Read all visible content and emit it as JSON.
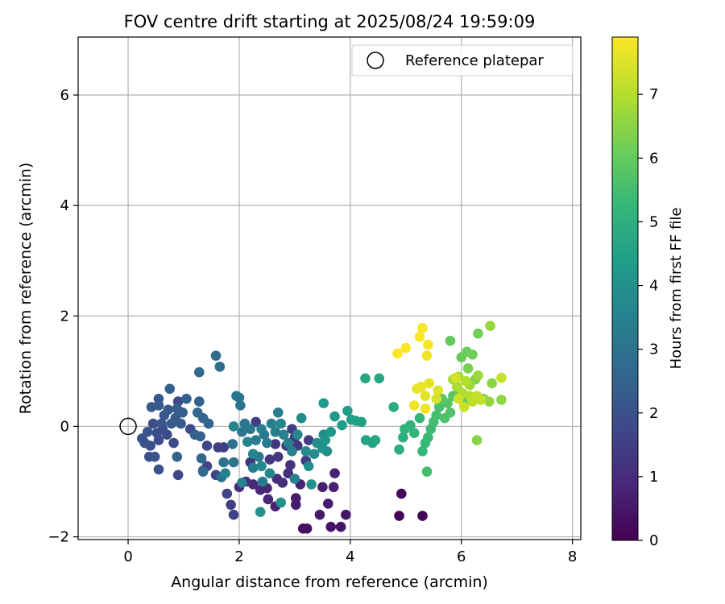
{
  "chart_data": {
    "type": "scatter",
    "title": "FOV centre drift starting at 2025/08/24 19:59:09",
    "xlabel": "Angular distance from reference (arcmin)",
    "ylabel": "Rotation from reference (arcmin)",
    "xlim": [
      -0.9,
      8.15
    ],
    "ylim": [
      -2.05,
      7.05
    ],
    "xticks": [
      0,
      2,
      4,
      6,
      8
    ],
    "yticks": [
      -2,
      0,
      2,
      4,
      6
    ],
    "grid": true,
    "legend": {
      "placement": "top-right",
      "entries": [
        "Reference platepar"
      ]
    },
    "reference_point": {
      "x": 0,
      "y": 0
    },
    "colorbar": {
      "label": "Hours from first FF file",
      "colormap": "viridis",
      "range": [
        0,
        7.9
      ],
      "ticks": [
        0,
        1,
        2,
        3,
        4,
        5,
        6,
        7
      ]
    },
    "colormap_stops": [
      "#440154",
      "#482878",
      "#3e4989",
      "#31688e",
      "#26828e",
      "#1f9e89",
      "#35b779",
      "#6ece58",
      "#b5de2b",
      "#fde725"
    ],
    "points": [
      {
        "x": 4.88,
        "y": -1.62,
        "h": 0.05
      },
      {
        "x": 5.3,
        "y": -1.62,
        "h": 0.1
      },
      {
        "x": 4.92,
        "y": -1.22,
        "h": 0.15
      },
      {
        "x": 3.15,
        "y": -1.85,
        "h": 0.3
      },
      {
        "x": 3.22,
        "y": -1.85,
        "h": 0.35
      },
      {
        "x": 3.65,
        "y": -1.82,
        "h": 0.4
      },
      {
        "x": 3.83,
        "y": -1.82,
        "h": 0.45
      },
      {
        "x": 3.92,
        "y": -1.6,
        "h": 0.5
      },
      {
        "x": 3.45,
        "y": -1.6,
        "h": 0.55
      },
      {
        "x": 3.02,
        "y": -1.42,
        "h": 0.6
      },
      {
        "x": 3.02,
        "y": -1.3,
        "h": 0.6
      },
      {
        "x": 3.6,
        "y": -1.4,
        "h": 0.65
      },
      {
        "x": 3.7,
        "y": -1.1,
        "h": 0.7
      },
      {
        "x": 3.5,
        "y": -1.1,
        "h": 0.7
      },
      {
        "x": 3.72,
        "y": -0.85,
        "h": 0.75
      },
      {
        "x": 3.1,
        "y": -1.05,
        "h": 0.8
      },
      {
        "x": 2.65,
        "y": -1.45,
        "h": 0.8
      },
      {
        "x": 2.52,
        "y": -1.32,
        "h": 0.85
      },
      {
        "x": 2.5,
        "y": -1.12,
        "h": 0.9
      },
      {
        "x": 2.38,
        "y": -1.15,
        "h": 0.9
      },
      {
        "x": 2.25,
        "y": -1.05,
        "h": 0.95
      },
      {
        "x": 2.0,
        "y": -1.1,
        "h": 1.0
      },
      {
        "x": 2.12,
        "y": -1.0,
        "h": 1.0
      },
      {
        "x": 2.68,
        "y": -0.95,
        "h": 1.05
      },
      {
        "x": 2.78,
        "y": -1.02,
        "h": 1.1
      },
      {
        "x": 2.88,
        "y": -0.85,
        "h": 1.1
      },
      {
        "x": 2.92,
        "y": -0.7,
        "h": 1.15
      },
      {
        "x": 2.2,
        "y": -0.65,
        "h": 1.2
      },
      {
        "x": 2.35,
        "y": -0.55,
        "h": 1.2
      },
      {
        "x": 2.55,
        "y": -0.6,
        "h": 1.25
      },
      {
        "x": 2.7,
        "y": -0.55,
        "h": 1.25
      },
      {
        "x": 2.85,
        "y": -0.35,
        "h": 1.3
      },
      {
        "x": 2.65,
        "y": -0.32,
        "h": 1.3
      },
      {
        "x": 3.05,
        "y": -0.35,
        "h": 1.35
      },
      {
        "x": 3.2,
        "y": -0.62,
        "h": 1.35
      },
      {
        "x": 3.25,
        "y": -0.25,
        "h": 1.4
      },
      {
        "x": 3.0,
        "y": -0.2,
        "h": 1.4
      },
      {
        "x": 2.95,
        "y": -0.05,
        "h": 1.45
      },
      {
        "x": 2.3,
        "y": 0.08,
        "h": 1.45
      },
      {
        "x": 1.62,
        "y": -0.38,
        "h": 1.5
      },
      {
        "x": 1.72,
        "y": -0.38,
        "h": 1.5
      },
      {
        "x": 1.85,
        "y": -1.42,
        "h": 1.55
      },
      {
        "x": 1.9,
        "y": -1.6,
        "h": 1.55
      },
      {
        "x": 1.78,
        "y": -1.22,
        "h": 1.6
      },
      {
        "x": 1.58,
        "y": -0.88,
        "h": 1.6
      },
      {
        "x": 1.42,
        "y": -0.72,
        "h": 1.65
      },
      {
        "x": 1.35,
        "y": -0.8,
        "h": 1.65
      },
      {
        "x": 1.42,
        "y": -0.35,
        "h": 1.7
      },
      {
        "x": 0.9,
        "y": -0.88,
        "h": 1.7
      },
      {
        "x": 0.9,
        "y": 0.45,
        "h": 1.75
      },
      {
        "x": 1.12,
        "y": -0.05,
        "h": 1.75
      },
      {
        "x": 0.82,
        "y": -0.3,
        "h": 1.8
      },
      {
        "x": 0.7,
        "y": -0.15,
        "h": 1.8
      },
      {
        "x": 0.62,
        "y": -0.05,
        "h": 1.85
      },
      {
        "x": 0.55,
        "y": -0.25,
        "h": 1.85
      },
      {
        "x": 0.52,
        "y": -0.12,
        "h": 1.9
      },
      {
        "x": 0.45,
        "y": 0.05,
        "h": 1.9
      },
      {
        "x": 0.4,
        "y": -0.35,
        "h": 1.95
      },
      {
        "x": 0.38,
        "y": -0.55,
        "h": 1.95
      },
      {
        "x": 0.3,
        "y": -0.3,
        "h": 2.0
      },
      {
        "x": 0.25,
        "y": -0.22,
        "h": 2.0
      },
      {
        "x": 0.35,
        "y": -0.1,
        "h": 2.05
      },
      {
        "x": 0.55,
        "y": -0.78,
        "h": 2.05
      },
      {
        "x": 0.48,
        "y": -0.55,
        "h": 2.1
      },
      {
        "x": 0.6,
        "y": 0.05,
        "h": 2.1
      },
      {
        "x": 0.65,
        "y": 0.2,
        "h": 2.15
      },
      {
        "x": 0.42,
        "y": 0.35,
        "h": 2.15
      },
      {
        "x": 0.55,
        "y": 0.38,
        "h": 2.2
      },
      {
        "x": 0.55,
        "y": 0.5,
        "h": 2.2
      },
      {
        "x": 0.72,
        "y": 0.3,
        "h": 2.25
      },
      {
        "x": 0.78,
        "y": 0.05,
        "h": 2.25
      },
      {
        "x": 0.85,
        "y": 0.15,
        "h": 2.3
      },
      {
        "x": 0.95,
        "y": 0.05,
        "h": 2.3
      },
      {
        "x": 0.88,
        "y": 0.32,
        "h": 2.35
      },
      {
        "x": 0.98,
        "y": 0.25,
        "h": 2.35
      },
      {
        "x": 1.05,
        "y": 0.5,
        "h": 2.4
      },
      {
        "x": 0.75,
        "y": 0.68,
        "h": 2.4
      },
      {
        "x": 0.88,
        "y": -0.55,
        "h": 2.45
      },
      {
        "x": 1.2,
        "y": -0.15,
        "h": 2.45
      },
      {
        "x": 1.3,
        "y": -0.18,
        "h": 2.5
      },
      {
        "x": 1.28,
        "y": 0.45,
        "h": 2.5
      },
      {
        "x": 1.35,
        "y": 0.15,
        "h": 2.55
      },
      {
        "x": 1.45,
        "y": 0.05,
        "h": 2.55
      },
      {
        "x": 1.25,
        "y": 0.25,
        "h": 2.6
      },
      {
        "x": 1.32,
        "y": -0.58,
        "h": 2.6
      },
      {
        "x": 1.35,
        "y": -0.82,
        "h": 2.65
      },
      {
        "x": 1.28,
        "y": 0.98,
        "h": 2.7
      },
      {
        "x": 1.58,
        "y": 1.28,
        "h": 2.75
      },
      {
        "x": 1.65,
        "y": 1.08,
        "h": 2.8
      },
      {
        "x": 1.68,
        "y": -0.92,
        "h": 2.85
      },
      {
        "x": 1.72,
        "y": -0.65,
        "h": 2.9
      },
      {
        "x": 1.88,
        "y": -0.32,
        "h": 2.95
      },
      {
        "x": 1.9,
        "y": -0.65,
        "h": 3.0
      },
      {
        "x": 1.95,
        "y": 0.55,
        "h": 3.05
      },
      {
        "x": 2.02,
        "y": 0.38,
        "h": 3.05
      },
      {
        "x": 2.0,
        "y": 0.52,
        "h": 3.1
      },
      {
        "x": 2.05,
        "y": -0.1,
        "h": 3.1
      },
      {
        "x": 2.1,
        "y": 0.05,
        "h": 3.15
      },
      {
        "x": 2.2,
        "y": -0.05,
        "h": 3.15
      },
      {
        "x": 2.3,
        "y": -0.25,
        "h": 3.2
      },
      {
        "x": 2.35,
        "y": -0.55,
        "h": 3.2
      },
      {
        "x": 2.45,
        "y": -0.15,
        "h": 3.25
      },
      {
        "x": 2.5,
        "y": -0.3,
        "h": 3.25
      },
      {
        "x": 2.42,
        "y": -1.0,
        "h": 3.3
      },
      {
        "x": 2.25,
        "y": -0.75,
        "h": 3.3
      },
      {
        "x": 2.4,
        "y": -0.05,
        "h": 3.35
      },
      {
        "x": 2.58,
        "y": 0.05,
        "h": 3.35
      },
      {
        "x": 2.7,
        "y": 0.25,
        "h": 3.4
      },
      {
        "x": 2.65,
        "y": -0.1,
        "h": 3.4
      },
      {
        "x": 2.8,
        "y": -0.15,
        "h": 3.45
      },
      {
        "x": 2.88,
        "y": -0.3,
        "h": 3.45
      },
      {
        "x": 2.95,
        "y": -0.45,
        "h": 3.5
      },
      {
        "x": 3.0,
        "y": -0.95,
        "h": 3.5
      },
      {
        "x": 2.05,
        "y": -1.02,
        "h": 3.55
      },
      {
        "x": 1.75,
        "y": -0.85,
        "h": 3.55
      },
      {
        "x": 1.9,
        "y": 0.0,
        "h": 3.6
      },
      {
        "x": 2.15,
        "y": -0.28,
        "h": 3.6
      },
      {
        "x": 2.25,
        "y": -0.5,
        "h": 3.65
      },
      {
        "x": 2.55,
        "y": -0.85,
        "h": 3.65
      },
      {
        "x": 2.4,
        "y": -0.72,
        "h": 3.7
      },
      {
        "x": 2.75,
        "y": 0.05,
        "h": 3.7
      },
      {
        "x": 3.05,
        "y": -0.15,
        "h": 3.75
      },
      {
        "x": 3.2,
        "y": -0.45,
        "h": 3.75
      },
      {
        "x": 3.12,
        "y": 0.15,
        "h": 3.8
      },
      {
        "x": 3.25,
        "y": -0.72,
        "h": 3.8
      },
      {
        "x": 3.4,
        "y": -0.3,
        "h": 3.85
      },
      {
        "x": 3.52,
        "y": -0.15,
        "h": 3.85
      },
      {
        "x": 3.58,
        "y": -0.45,
        "h": 3.9
      },
      {
        "x": 3.35,
        "y": -0.5,
        "h": 3.9
      },
      {
        "x": 3.3,
        "y": -1.05,
        "h": 3.95
      },
      {
        "x": 2.38,
        "y": -1.55,
        "h": 3.95
      },
      {
        "x": 2.75,
        "y": -1.38,
        "h": 4.0
      },
      {
        "x": 3.5,
        "y": -0.4,
        "h": 4.05
      },
      {
        "x": 3.55,
        "y": -0.25,
        "h": 4.1
      },
      {
        "x": 3.65,
        "y": -0.1,
        "h": 4.15
      },
      {
        "x": 3.72,
        "y": 0.18,
        "h": 4.2
      },
      {
        "x": 3.85,
        "y": 0.02,
        "h": 4.25
      },
      {
        "x": 3.52,
        "y": 0.42,
        "h": 4.3
      },
      {
        "x": 3.95,
        "y": 0.28,
        "h": 4.35
      },
      {
        "x": 4.02,
        "y": 0.12,
        "h": 4.4
      },
      {
        "x": 4.1,
        "y": 0.1,
        "h": 4.45
      },
      {
        "x": 4.2,
        "y": 0.08,
        "h": 4.5
      },
      {
        "x": 4.28,
        "y": -0.25,
        "h": 4.55
      },
      {
        "x": 4.4,
        "y": -0.3,
        "h": 4.6
      },
      {
        "x": 4.45,
        "y": -0.25,
        "h": 4.65
      },
      {
        "x": 4.27,
        "y": 0.87,
        "h": 4.7
      },
      {
        "x": 4.52,
        "y": 0.87,
        "h": 4.75
      },
      {
        "x": 4.78,
        "y": 0.35,
        "h": 4.85
      },
      {
        "x": 4.88,
        "y": -0.42,
        "h": 4.95
      },
      {
        "x": 4.95,
        "y": -0.2,
        "h": 5.0
      },
      {
        "x": 4.98,
        "y": -0.05,
        "h": 5.05
      },
      {
        "x": 5.08,
        "y": 0.02,
        "h": 5.1
      },
      {
        "x": 5.15,
        "y": -0.12,
        "h": 5.15
      },
      {
        "x": 5.25,
        "y": 0.15,
        "h": 5.2
      },
      {
        "x": 5.3,
        "y": -0.45,
        "h": 5.25
      },
      {
        "x": 5.35,
        "y": -0.3,
        "h": 5.3
      },
      {
        "x": 5.4,
        "y": -0.2,
        "h": 5.35
      },
      {
        "x": 5.45,
        "y": -0.05,
        "h": 5.4
      },
      {
        "x": 5.5,
        "y": 0.08,
        "h": 5.45
      },
      {
        "x": 5.38,
        "y": -0.82,
        "h": 5.5
      },
      {
        "x": 5.55,
        "y": 0.2,
        "h": 5.55
      },
      {
        "x": 5.6,
        "y": 0.35,
        "h": 5.6
      },
      {
        "x": 5.7,
        "y": 0.15,
        "h": 5.65
      },
      {
        "x": 5.8,
        "y": 0.25,
        "h": 5.7
      },
      {
        "x": 5.75,
        "y": 0.42,
        "h": 5.75
      },
      {
        "x": 5.85,
        "y": 0.55,
        "h": 5.8
      },
      {
        "x": 5.65,
        "y": 0.5,
        "h": 5.85
      },
      {
        "x": 5.95,
        "y": 0.65,
        "h": 5.9
      },
      {
        "x": 6.05,
        "y": 0.45,
        "h": 5.95
      },
      {
        "x": 5.8,
        "y": 1.55,
        "h": 6.0
      },
      {
        "x": 6.0,
        "y": 1.25,
        "h": 6.05
      },
      {
        "x": 6.1,
        "y": 1.35,
        "h": 6.1
      },
      {
        "x": 6.2,
        "y": 1.3,
        "h": 6.15
      },
      {
        "x": 6.3,
        "y": 1.68,
        "h": 6.2
      },
      {
        "x": 6.12,
        "y": 1.05,
        "h": 6.25
      },
      {
        "x": 6.25,
        "y": 0.85,
        "h": 6.3
      },
      {
        "x": 6.4,
        "y": 0.5,
        "h": 6.35
      },
      {
        "x": 6.28,
        "y": -0.25,
        "h": 6.45
      },
      {
        "x": 6.55,
        "y": 0.78,
        "h": 6.5
      },
      {
        "x": 6.72,
        "y": 0.48,
        "h": 6.55
      },
      {
        "x": 6.5,
        "y": 0.45,
        "h": 6.6
      },
      {
        "x": 6.52,
        "y": 1.82,
        "h": 6.65
      },
      {
        "x": 6.3,
        "y": 0.92,
        "h": 6.7
      },
      {
        "x": 6.15,
        "y": 0.75,
        "h": 6.75
      },
      {
        "x": 5.95,
        "y": 0.9,
        "h": 6.8
      },
      {
        "x": 5.85,
        "y": 0.85,
        "h": 6.85
      },
      {
        "x": 5.92,
        "y": 0.72,
        "h": 6.9
      },
      {
        "x": 6.02,
        "y": 0.6,
        "h": 6.95
      },
      {
        "x": 6.08,
        "y": 0.82,
        "h": 7.0
      },
      {
        "x": 6.15,
        "y": 0.55,
        "h": 7.05
      },
      {
        "x": 6.2,
        "y": 0.45,
        "h": 7.1
      },
      {
        "x": 6.28,
        "y": 0.55,
        "h": 7.15
      },
      {
        "x": 6.35,
        "y": 0.48,
        "h": 7.2
      },
      {
        "x": 6.72,
        "y": 0.88,
        "h": 7.25
      },
      {
        "x": 6.05,
        "y": 0.35,
        "h": 7.3
      },
      {
        "x": 5.95,
        "y": 0.5,
        "h": 7.35
      },
      {
        "x": 5.9,
        "y": 0.88,
        "h": 7.4
      },
      {
        "x": 5.55,
        "y": 0.5,
        "h": 7.45
      },
      {
        "x": 5.58,
        "y": 0.65,
        "h": 7.5
      },
      {
        "x": 5.35,
        "y": 0.55,
        "h": 7.55
      },
      {
        "x": 5.42,
        "y": 0.78,
        "h": 7.6
      },
      {
        "x": 5.2,
        "y": 0.68,
        "h": 7.65
      },
      {
        "x": 5.28,
        "y": 0.72,
        "h": 7.65
      },
      {
        "x": 5.15,
        "y": 0.38,
        "h": 7.7
      },
      {
        "x": 5.35,
        "y": 0.32,
        "h": 7.75
      },
      {
        "x": 5.38,
        "y": 1.28,
        "h": 7.75
      },
      {
        "x": 5.4,
        "y": 1.48,
        "h": 7.8
      },
      {
        "x": 5.3,
        "y": 1.78,
        "h": 7.8
      },
      {
        "x": 5.25,
        "y": 1.62,
        "h": 7.85
      },
      {
        "x": 5.0,
        "y": 1.42,
        "h": 7.85
      },
      {
        "x": 4.85,
        "y": 1.32,
        "h": 7.9
      }
    ]
  }
}
